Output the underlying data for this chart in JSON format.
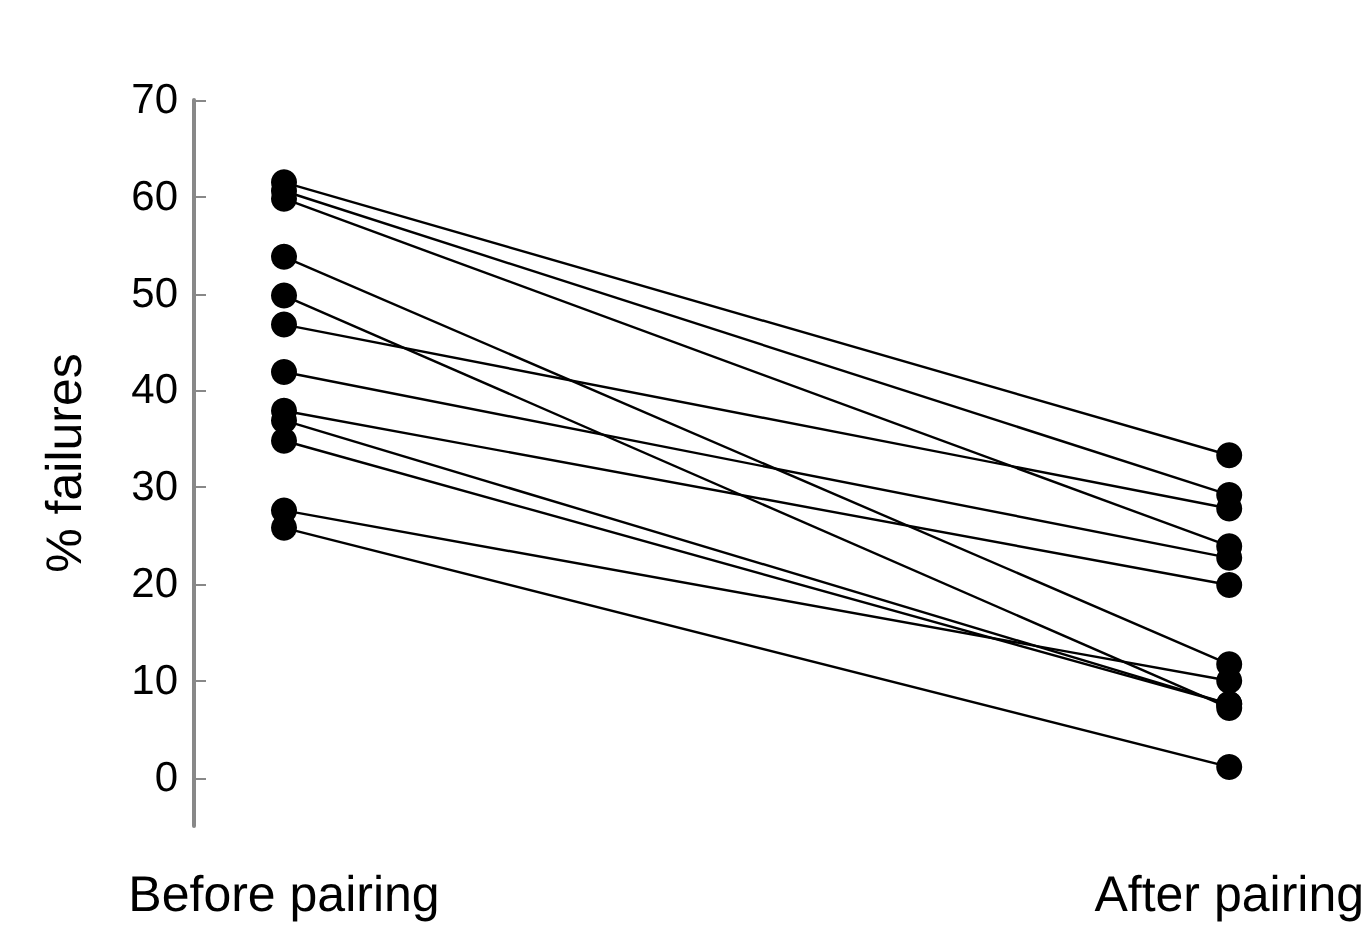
{
  "chart_data": {
    "type": "line",
    "ylabel": "% failures",
    "categories": [
      "Before pairing",
      "After pairing"
    ],
    "ylim": [
      -5,
      70
    ],
    "yticks": [
      0,
      10,
      20,
      30,
      40,
      50,
      60,
      70
    ],
    "grid": false,
    "marker": "circle",
    "line_style": "solid",
    "series": [
      {
        "color": "#000000",
        "values": [
          61.5,
          33.3
        ]
      },
      {
        "color": "#000000",
        "values": [
          60.6,
          29.2
        ]
      },
      {
        "color": "#000000",
        "values": [
          59.8,
          23.9
        ]
      },
      {
        "color": "#000000",
        "values": [
          53.8,
          11.7
        ]
      },
      {
        "color": "#000000",
        "values": [
          49.8,
          7.2
        ]
      },
      {
        "color": "#000000",
        "values": [
          46.8,
          27.8
        ]
      },
      {
        "color": "#000000",
        "values": [
          41.9,
          22.7
        ]
      },
      {
        "color": "#000000",
        "values": [
          37.9,
          19.9
        ]
      },
      {
        "color": "#000000",
        "values": [
          36.9,
          7.6
        ]
      },
      {
        "color": "#000000",
        "values": [
          34.8,
          7.6
        ]
      },
      {
        "color": "#000000",
        "values": [
          27.6,
          10.0
        ]
      },
      {
        "color": "#000000",
        "values": [
          25.8,
          1.1
        ]
      }
    ]
  }
}
